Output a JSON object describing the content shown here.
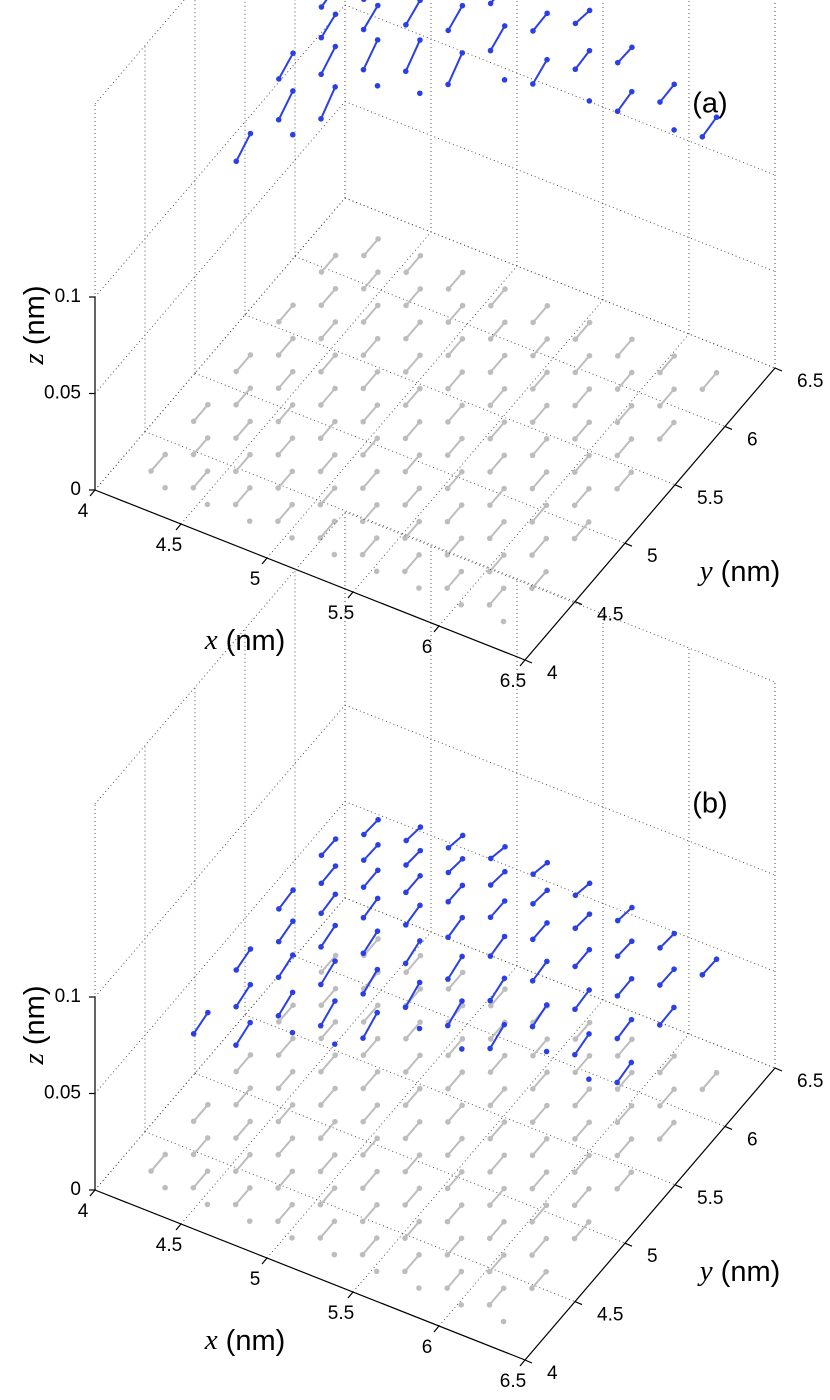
{
  "panels": [
    {
      "label": "(a)",
      "x_axis": {
        "symbol": "x",
        "unit": "(nm)",
        "lim": [
          4,
          6.5
        ],
        "ticks": [
          4,
          4.5,
          5,
          5.5,
          6,
          6.5
        ]
      },
      "y_axis": {
        "symbol": "y",
        "unit": "(nm)",
        "lim": [
          4,
          6.5
        ],
        "ticks": [
          4,
          4.5,
          5,
          5.5,
          6,
          6.5
        ]
      },
      "z_axis": {
        "symbol": "z",
        "unit": "(nm)",
        "lim": [
          0,
          0.2
        ],
        "ticks": [
          0,
          0.05,
          0.1
        ]
      }
    },
    {
      "label": "(b)",
      "x_axis": {
        "symbol": "x",
        "unit": "(nm)",
        "lim": [
          4,
          6.5
        ],
        "ticks": [
          4,
          4.5,
          5,
          5.5,
          6,
          6.5
        ]
      },
      "y_axis": {
        "symbol": "y",
        "unit": "(nm)",
        "lim": [
          4,
          6.5
        ],
        "ticks": [
          4,
          4.5,
          5,
          5.5,
          6,
          6.5
        ]
      },
      "z_axis": {
        "symbol": "z",
        "unit": "(nm)",
        "lim": [
          0,
          0.2
        ],
        "ticks": [
          0,
          0.05,
          0.1
        ]
      }
    }
  ]
}
